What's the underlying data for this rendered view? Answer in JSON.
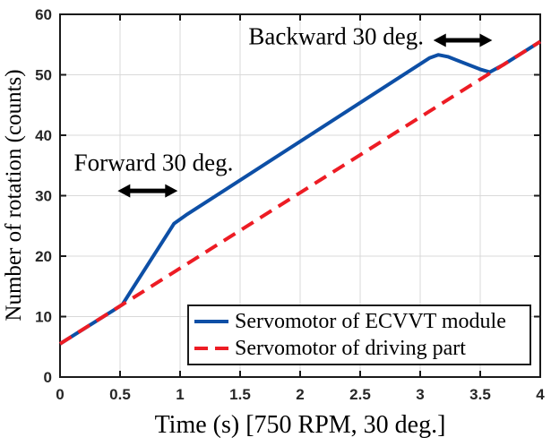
{
  "chart_data": {
    "type": "line",
    "title": "",
    "xlabel": "Time (s) [750 RPM, 30 deg.]",
    "ylabel": "Number of rotation (counts)",
    "xlim": [
      0,
      4
    ],
    "ylim": [
      0,
      60
    ],
    "xticks": [
      0,
      0.5,
      1,
      1.5,
      2,
      2.5,
      3,
      3.5,
      4
    ],
    "xtick_labels": [
      "0",
      "0.5",
      "1",
      "1.5",
      "2",
      "2.5",
      "3",
      "3.5",
      "4"
    ],
    "yticks": [
      0,
      10,
      20,
      30,
      40,
      50,
      60
    ],
    "ytick_labels": [
      "0",
      "10",
      "20",
      "30",
      "40",
      "50",
      "60"
    ],
    "grid": true,
    "grid_color": "#d9d9d9",
    "axis_color": "#1a1a1a",
    "legend_position": "lower right",
    "series": [
      {
        "name": "Servomotor of ECVVT module",
        "color": "#0d4fa6",
        "style": "solid",
        "points": [
          [
            0,
            5.5
          ],
          [
            0.45,
            11.1
          ],
          [
            0.52,
            12.0
          ],
          [
            0.6,
            14.5
          ],
          [
            0.95,
            25.4
          ],
          [
            1.05,
            26.8
          ],
          [
            3.08,
            52.8
          ],
          [
            3.15,
            53.3
          ],
          [
            3.23,
            53.0
          ],
          [
            3.5,
            50.9
          ],
          [
            3.58,
            50.45
          ],
          [
            3.7,
            51.75
          ],
          [
            4,
            55.5
          ]
        ]
      },
      {
        "name": "Servomotor of driving part",
        "color": "#ed1c24",
        "style": "dashed",
        "points": [
          [
            0,
            5.5
          ],
          [
            4,
            55.5
          ]
        ]
      }
    ],
    "annotations": [
      {
        "text": "Forward 30 deg.",
        "x": 0.78,
        "y": 35.4,
        "arrow": {
          "x1": 0.48,
          "x2": 0.98,
          "y": 30.8
        }
      },
      {
        "text": "Backward 30 deg.",
        "x": 2.3,
        "y": 56.3,
        "arrow": {
          "x1": 3.11,
          "x2": 3.6,
          "y": 55.7
        }
      }
    ]
  }
}
